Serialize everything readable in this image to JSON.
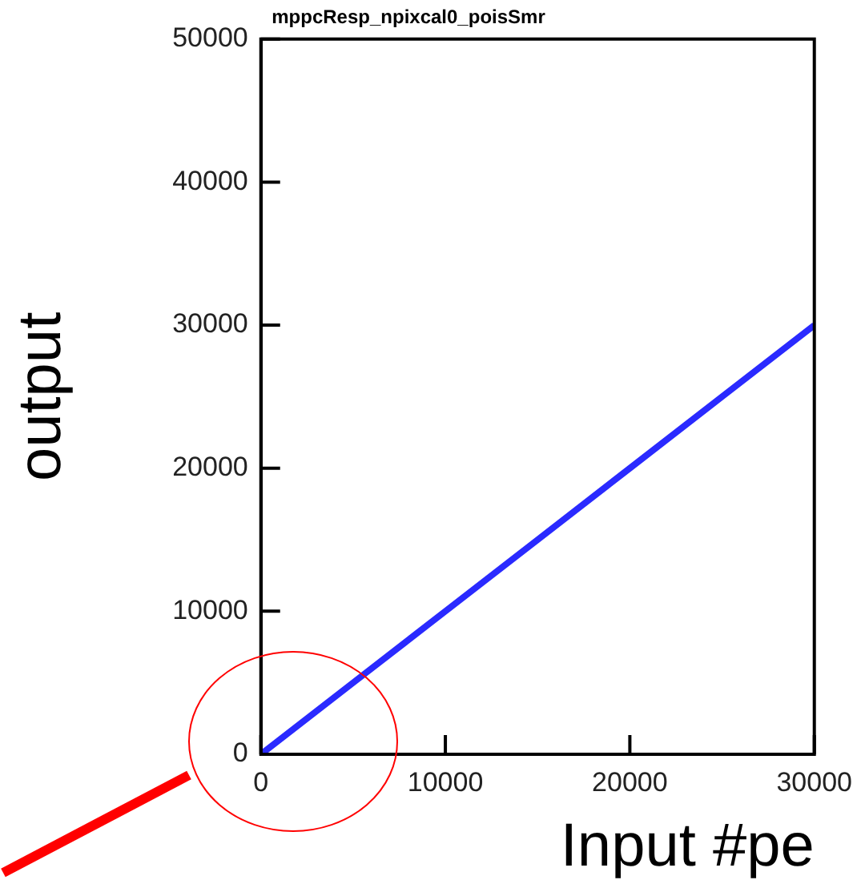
{
  "chart_data": {
    "type": "line",
    "title": "mppcResp_npixcal0_poisSmr",
    "xlabel": "Input #pe",
    "ylabel": "output",
    "x": [
      0,
      5000,
      10000,
      15000,
      20000,
      25000,
      30000
    ],
    "series": [
      {
        "color": "#2a2aff",
        "values": [
          0,
          5000,
          10000,
          15000,
          20000,
          25000,
          30000
        ]
      }
    ],
    "xlim": [
      0,
      30000
    ],
    "xticks": [
      0,
      10000,
      20000,
      30000
    ],
    "ylim": [
      0,
      50000
    ],
    "yticks": [
      0,
      10000,
      20000,
      30000,
      40000,
      50000
    ],
    "grid": false,
    "legend": false,
    "marker": "none",
    "line_style": "solid"
  }
}
